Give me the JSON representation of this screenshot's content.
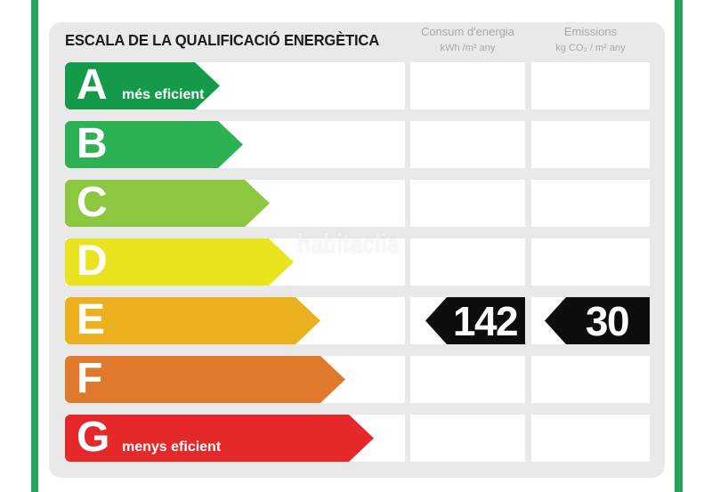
{
  "window": {
    "background": "#FFFFFF"
  },
  "frame": {
    "left_bar_color": "#24A35A",
    "right_bar_color": "#24A35A",
    "panel_color": "#E9E9E9",
    "cell_color": "#FFFFFF"
  },
  "header": {
    "title": "ESCALA DE LA QUALIFICACIÓ ENERGÈTICA",
    "title_color": "#1C1C1C",
    "consum_label": "Consum d'energia",
    "consum_unit": "kWh /m²  any",
    "emissions_label": "Emissions",
    "emissions_unit": "kg CO₂  / m²  any",
    "label_color": "#A8A8A8"
  },
  "chart_data": {
    "type": "bar",
    "subtype": "energy-rating-scale",
    "title": "ESCALA DE LA QUALIFICACIÓ ENERGÈTICA",
    "categories": [
      "A",
      "B",
      "C",
      "D",
      "E",
      "F",
      "G"
    ],
    "rating": "E",
    "grid": false,
    "legend_position": "top",
    "value_badge_color": "#0D0D0D",
    "series": [
      {
        "name": "Consum d'energia",
        "unit": "kWh/m² any",
        "values": [
          null,
          null,
          null,
          null,
          142,
          null,
          null
        ]
      },
      {
        "name": "Emissions",
        "unit": "kg CO₂/m² any",
        "values": [
          null,
          null,
          null,
          null,
          30,
          null,
          null
        ]
      }
    ],
    "rows": [
      {
        "grade": "A",
        "note": "més eficient",
        "color": "#149B4A",
        "bar_length": 174,
        "consum": "",
        "emissions": ""
      },
      {
        "grade": "B",
        "note": "",
        "color": "#2CB153",
        "bar_length": 200,
        "consum": "",
        "emissions": ""
      },
      {
        "grade": "C",
        "note": "",
        "color": "#8DC63F",
        "bar_length": 230,
        "consum": "",
        "emissions": ""
      },
      {
        "grade": "D",
        "note": "",
        "color": "#E9E41F",
        "bar_length": 257,
        "consum": "",
        "emissions": ""
      },
      {
        "grade": "E",
        "note": "",
        "color": "#EDB01E",
        "bar_length": 287,
        "consum": "142",
        "emissions": "30"
      },
      {
        "grade": "F",
        "note": "",
        "color": "#E0792B",
        "bar_length": 315,
        "consum": "",
        "emissions": ""
      },
      {
        "grade": "G",
        "note": "menys eficient",
        "color": "#E5292B",
        "bar_length": 347,
        "consum": "",
        "emissions": ""
      }
    ]
  },
  "watermark": {
    "text": "habitaclia",
    "color": "rgba(255,255,255,0.62)"
  }
}
